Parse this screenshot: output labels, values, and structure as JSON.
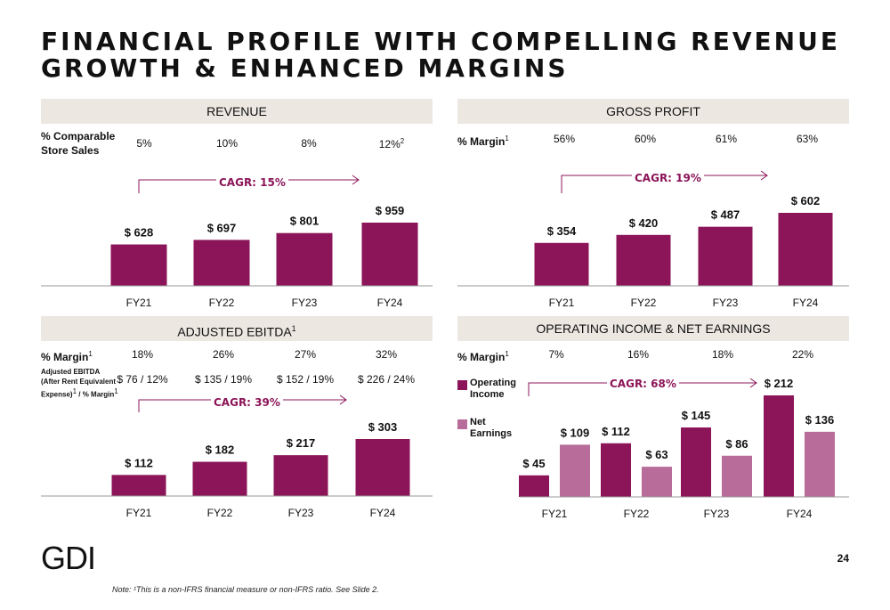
{
  "page": {
    "title_line1": "FINANCIAL PROFILE WITH COMPELLING REVENUE",
    "title_line2": "GROWTH & ENHANCED MARGINS",
    "logo": "GDI",
    "page_number": "24",
    "note": "Note: ¹This is a non-IFRS financial measure or non-IFRS ratio. See Slide 2."
  },
  "colors": {
    "primary": "#8c1458",
    "secondary": "#b86c9a",
    "header_bg": "#ece7e1"
  },
  "revenue": {
    "header": "REVENUE",
    "row_label_1": "% Comparable",
    "row_label_2": "Store Sales",
    "row_values": [
      "5%",
      "10%",
      "8%",
      "12%"
    ],
    "row_last_sup": "2",
    "cagr": "CAGR: 15%"
  },
  "gross_profit": {
    "header": "GROSS PROFIT",
    "row_label": "% Margin",
    "row_values": [
      "56%",
      "60%",
      "61%",
      "63%"
    ],
    "cagr": "CAGR: 19%"
  },
  "ebitda": {
    "header": "ADJUSTED EBITDA",
    "row_label": "% Margin",
    "row_values": [
      "18%",
      "26%",
      "27%",
      "32%"
    ],
    "row2_label_1": "Adjusted EBITDA",
    "row2_label_2": "(After Rent Equivalent",
    "row2_label_3": "Expense)",
    "row2_label_3b": " / % Margin",
    "row2_values": [
      "$ 76 / 12%",
      "$ 135 / 19%",
      "$ 152 / 19%",
      "$ 226 / 24%"
    ],
    "cagr": "CAGR: 39%"
  },
  "operating": {
    "header": "OPERATING INCOME & NET EARNINGS",
    "row_label": "% Margin",
    "row_values": [
      "7%",
      "16%",
      "18%",
      "22%"
    ],
    "cagr": "CAGR: 68%",
    "legend_1a": "Operating",
    "legend_1b": "Income",
    "legend_2a": "Net",
    "legend_2b": "Earnings"
  },
  "chart_data": [
    {
      "type": "bar",
      "title": "REVENUE",
      "categories": [
        "FY21",
        "FY22",
        "FY23",
        "FY24"
      ],
      "values": [
        628,
        697,
        801,
        959
      ],
      "labels": [
        "$ 628",
        "$ 697",
        "$ 801",
        "$ 959"
      ]
    },
    {
      "type": "bar",
      "title": "GROSS PROFIT",
      "categories": [
        "FY21",
        "FY22",
        "FY23",
        "FY24"
      ],
      "values": [
        354,
        420,
        487,
        602
      ],
      "labels": [
        "$ 354",
        "$ 420",
        "$ 487",
        "$ 602"
      ]
    },
    {
      "type": "bar",
      "title": "ADJUSTED EBITDA",
      "categories": [
        "FY21",
        "FY22",
        "FY23",
        "FY24"
      ],
      "values": [
        112,
        182,
        217,
        303
      ],
      "labels": [
        "$ 112",
        "$ 182",
        "$ 217",
        "$ 303"
      ]
    },
    {
      "type": "bar",
      "title": "OPERATING INCOME & NET EARNINGS",
      "categories": [
        "FY21",
        "FY22",
        "FY23",
        "FY24"
      ],
      "series": [
        {
          "name": "Operating Income",
          "values": [
            45,
            112,
            145,
            212
          ],
          "labels": [
            "$ 45",
            "$ 112",
            "$ 145",
            "$ 212"
          ]
        },
        {
          "name": "Net Earnings",
          "values": [
            109,
            63,
            86,
            136
          ],
          "labels": [
            "$ 109",
            "$ 63",
            "$ 86",
            "$ 136"
          ]
        }
      ]
    }
  ]
}
